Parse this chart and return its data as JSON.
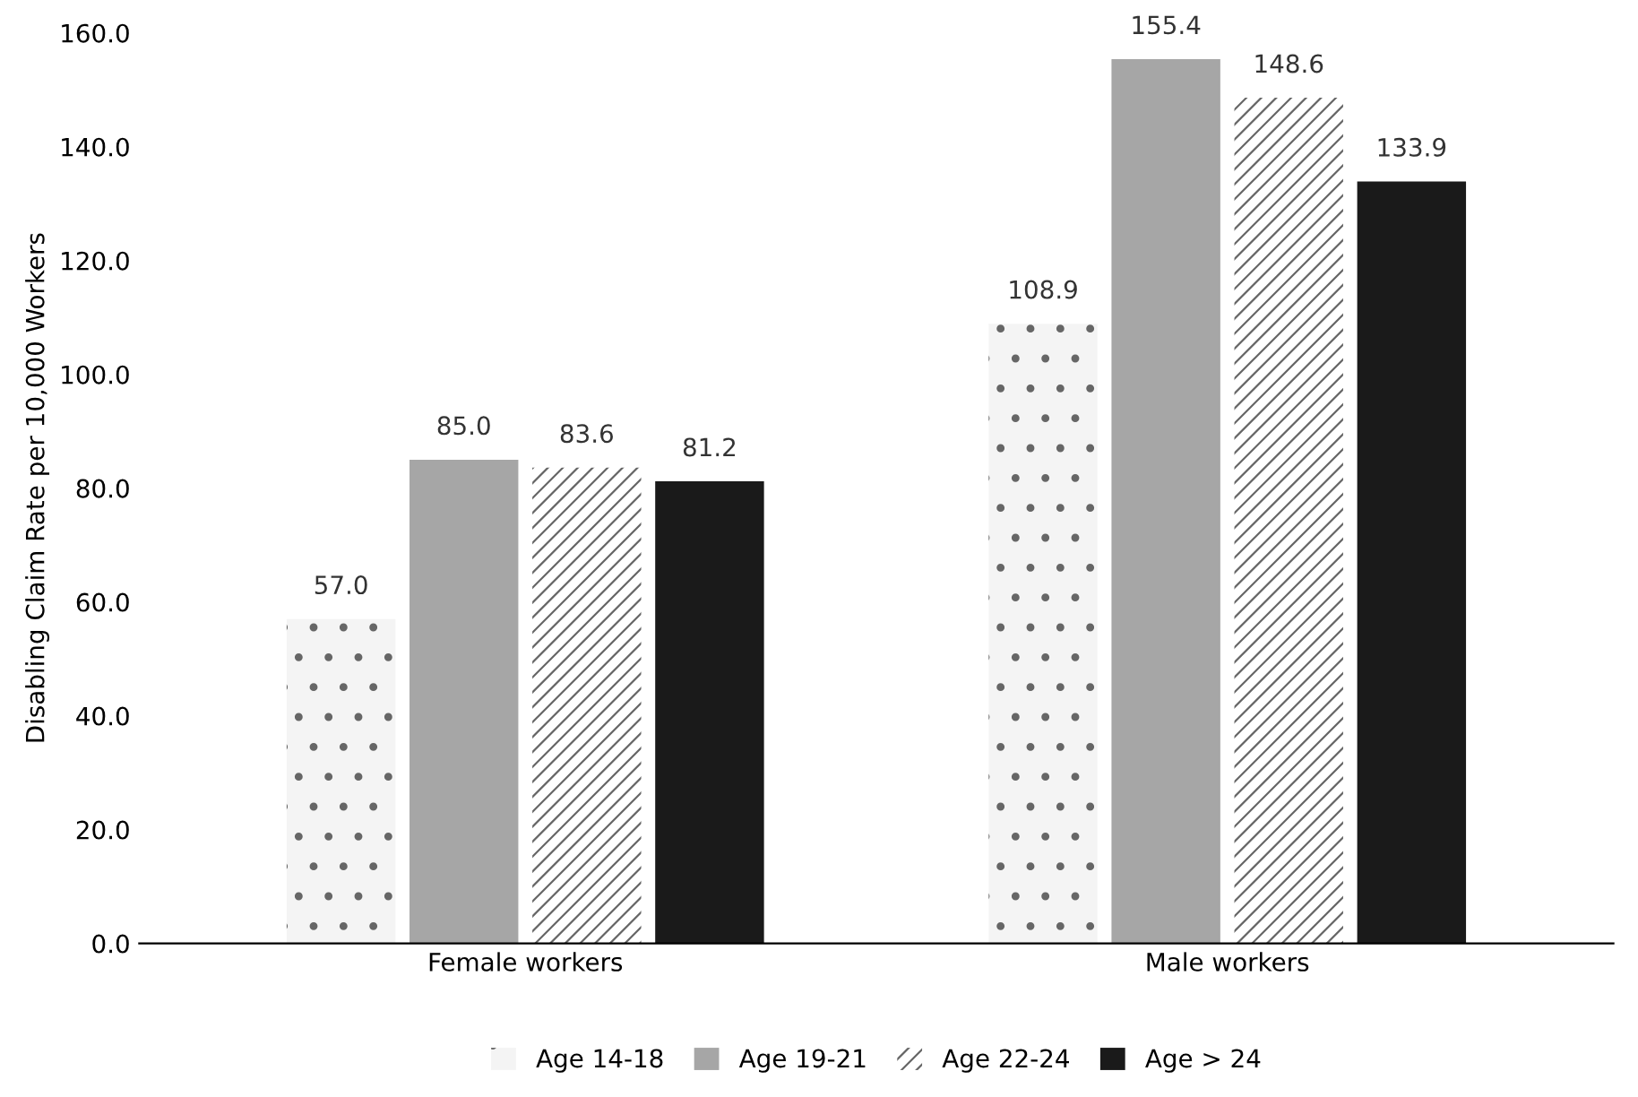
{
  "chart_data": {
    "type": "bar",
    "categories": [
      "Female workers",
      "Male workers"
    ],
    "ylabel": "Disabling Claim Rate per 10,000 Workers",
    "series": [
      {
        "name": "Age 14-18",
        "color": "#f4f4f4",
        "values": [
          57.0,
          108.9
        ],
        "value_labels": [
          "57.0",
          "108.9"
        ]
      },
      {
        "name": "Age 19-21",
        "color": "#a6a6a6",
        "values": [
          85.0,
          155.4
        ],
        "value_labels": [
          "85.0",
          "155.4"
        ]
      },
      {
        "name": "Age 22-24",
        "color": "#ffffff",
        "values": [
          83.6,
          148.6
        ],
        "value_labels": [
          "83.6",
          "148.6"
        ]
      },
      {
        "name": "Age > 24",
        "color": "#1a1a1a",
        "values": [
          81.2,
          133.9
        ],
        "value_labels": [
          "81.2",
          "133.9"
        ]
      }
    ],
    "ylim": [
      0,
      160
    ],
    "yticks": [
      {
        "value": 0,
        "label": "0.0"
      },
      {
        "value": 20,
        "label": "20.0"
      },
      {
        "value": 40,
        "label": "40.0"
      },
      {
        "value": 60,
        "label": "60.0"
      },
      {
        "value": 80,
        "label": "80.0"
      },
      {
        "value": 100,
        "label": "100.0"
      },
      {
        "value": 120,
        "label": "120.0"
      },
      {
        "value": 140,
        "label": "140.0"
      },
      {
        "value": 160,
        "label": "160.0"
      }
    ],
    "grid": false,
    "legend": "bottom"
  }
}
